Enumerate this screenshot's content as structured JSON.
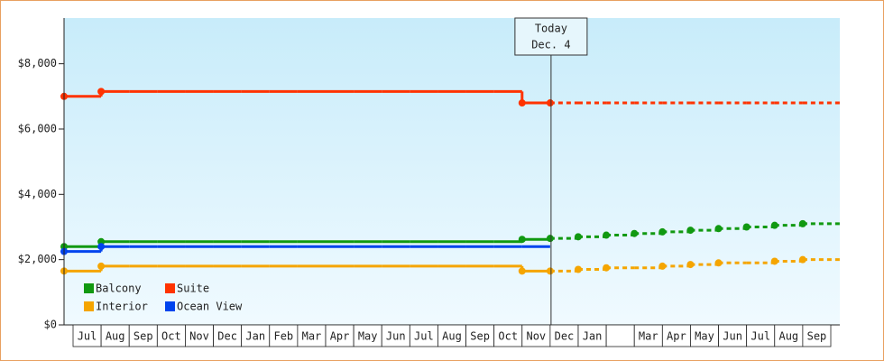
{
  "chart_data": {
    "type": "line",
    "categories": [
      "Jul",
      "Aug",
      "Sep",
      "Oct",
      "Nov",
      "Dec",
      "Jan",
      "Feb",
      "Mar",
      "Apr",
      "May",
      "Jun",
      "Jul",
      "Aug",
      "Sep",
      "Oct",
      "Nov",
      "Dec",
      "Jan",
      null,
      "Mar",
      "Apr",
      "May",
      "Jun",
      "Jul",
      "Aug",
      "Sep"
    ],
    "series": [
      {
        "name": "Balcony",
        "color": "#119911",
        "values": [
          2400,
          2550,
          2550,
          2550,
          2550,
          2550,
          2550,
          2550,
          2550,
          2550,
          2550,
          2550,
          2550,
          2550,
          2550,
          2550,
          2620,
          null,
          null,
          null,
          null,
          null,
          null,
          null,
          null,
          null,
          null
        ],
        "forecast": [
          null,
          null,
          null,
          null,
          null,
          null,
          null,
          null,
          null,
          null,
          null,
          null,
          null,
          null,
          null,
          null,
          null,
          2650,
          2700,
          2750,
          2800,
          2850,
          2900,
          2950,
          3000,
          3050,
          3100
        ]
      },
      {
        "name": "Suite",
        "color": "#ff3300",
        "values": [
          7000,
          7150,
          7150,
          7150,
          7150,
          7150,
          7150,
          7150,
          7150,
          7150,
          7150,
          7150,
          7150,
          7150,
          7150,
          7150,
          6800,
          null,
          null,
          null,
          null,
          null,
          null,
          null,
          null,
          null,
          null
        ],
        "forecast": [
          null,
          null,
          null,
          null,
          null,
          null,
          null,
          null,
          null,
          null,
          null,
          null,
          null,
          null,
          null,
          null,
          null,
          6800,
          6800,
          6800,
          6800,
          6800,
          6800,
          6800,
          6800,
          6800,
          6800
        ]
      },
      {
        "name": "Interior",
        "color": "#f5a500",
        "values": [
          1650,
          1800,
          1800,
          1800,
          1800,
          1800,
          1800,
          1800,
          1800,
          1800,
          1800,
          1800,
          1800,
          1800,
          1800,
          1800,
          1650,
          null,
          null,
          null,
          null,
          null,
          null,
          null,
          null,
          null,
          null
        ],
        "forecast": [
          null,
          null,
          null,
          null,
          null,
          null,
          null,
          null,
          null,
          null,
          null,
          null,
          null,
          null,
          null,
          null,
          null,
          1650,
          1700,
          1750,
          1750,
          1800,
          1850,
          1900,
          1900,
          1950,
          2000
        ]
      },
      {
        "name": "Ocean View",
        "color": "#0044ee",
        "values": [
          2250,
          2400,
          2400,
          2400,
          2400,
          2400,
          2400,
          2400,
          2400,
          2400,
          2400,
          2400,
          2400,
          2400,
          2400,
          2400,
          2400,
          null,
          null,
          null,
          null,
          null,
          null,
          null,
          null,
          null,
          null
        ],
        "forecast": [
          null,
          null,
          null,
          null,
          null,
          null,
          null,
          null,
          null,
          null,
          null,
          null,
          null,
          null,
          null,
          null,
          null,
          null,
          null,
          null,
          null,
          null,
          null,
          null,
          null,
          null,
          null
        ]
      }
    ],
    "ylim": [
      0,
      9400
    ],
    "yticks": [
      {
        "value": 0,
        "label": "$0"
      },
      {
        "value": 2000,
        "label": "$2,000"
      },
      {
        "value": 4000,
        "label": "$4,000"
      },
      {
        "value": 6000,
        "label": "$6,000"
      },
      {
        "value": 8000,
        "label": "$8,000"
      }
    ],
    "annotation": {
      "title": "Today",
      "date": "Dec. 4"
    }
  }
}
